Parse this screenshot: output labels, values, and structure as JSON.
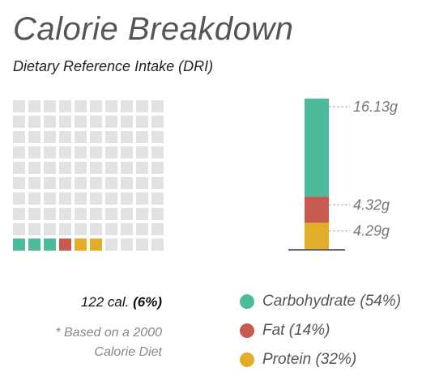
{
  "header": {
    "title": "Calorie Breakdown",
    "subtitle": "Dietary Reference Intake (DRI)"
  },
  "summary": {
    "calories_text": "122 cal.",
    "percent_text": "(6%)",
    "footnote_line1": "* Based on a 2000",
    "footnote_line2": "Calorie Diet"
  },
  "colors": {
    "carbohydrate": "#4dba9b",
    "fat": "#c85a50",
    "protein": "#e2ae2a",
    "empty": "#e2e2e2",
    "baseline": "#666666"
  },
  "chart_data": [
    {
      "type": "waffle",
      "grid": [
        10,
        10
      ],
      "total_cells": 100,
      "filled_cells": [
        {
          "category": "Carbohydrate",
          "count": 3
        },
        {
          "category": "Fat",
          "count": 1
        },
        {
          "category": "Protein",
          "count": 2
        }
      ],
      "percent_of_dri": 6
    },
    {
      "type": "stacked-bar",
      "unit": "g",
      "series": [
        {
          "name": "Carbohydrate",
          "value": 16.13,
          "label": "16.13g"
        },
        {
          "name": "Fat",
          "value": 4.32,
          "label": "4.32g"
        },
        {
          "name": "Protein",
          "value": 4.29,
          "label": "4.29g"
        }
      ]
    }
  ],
  "legend": [
    {
      "key": "carbohydrate",
      "label": "Carbohydrate (54%)"
    },
    {
      "key": "fat",
      "label": "Fat (14%)"
    },
    {
      "key": "protein",
      "label": "Protein (32%)"
    }
  ]
}
